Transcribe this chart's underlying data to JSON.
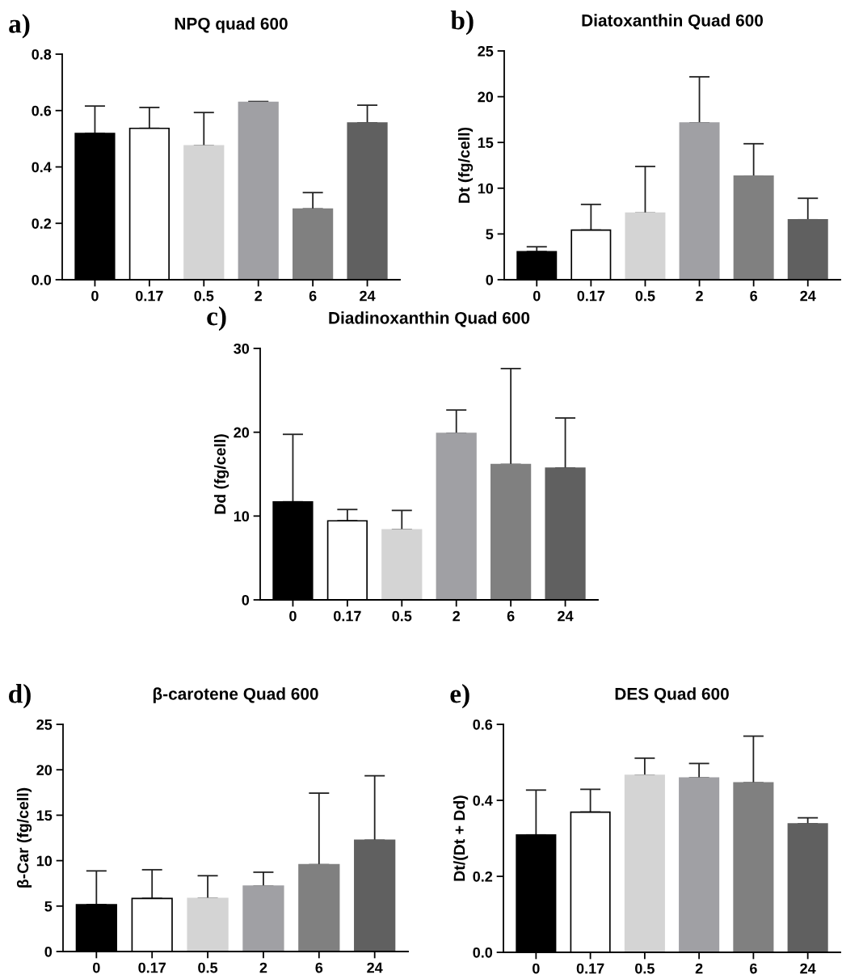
{
  "chart_data": [
    {
      "type": "bar",
      "title": "NPQ quad 600",
      "annotations": [
        "a)"
      ],
      "categories": [
        "0",
        "0.17",
        "0.5",
        "2",
        "6",
        "24"
      ],
      "values": [
        0.519,
        0.537,
        0.475,
        0.629,
        0.251,
        0.556
      ],
      "colors": [
        "#000000",
        "#ffffff",
        "#d4d4d4",
        "#a0a0a4",
        "#808080",
        "#606060"
      ],
      "errors": [
        [
          0.519,
          0.616
        ],
        [
          0.537,
          0.611
        ],
        [
          0.475,
          0.593
        ],
        [
          0.629,
          0.632
        ],
        [
          0.251,
          0.309
        ],
        [
          0.556,
          0.619
        ]
      ],
      "ylim": [
        0,
        0.8
      ],
      "yticks": [
        {
          "value": 0,
          "label": "0.0"
        },
        {
          "value": 0.2,
          "label": "0.2"
        },
        {
          "value": 0.4,
          "label": "0.4"
        },
        {
          "value": 0.6,
          "label": "0.6"
        },
        {
          "value": 0.8,
          "label": "0.8"
        }
      ],
      "grid": false,
      "legend": false
    },
    {
      "type": "bar",
      "title": "Diatoxanthin Quad 600",
      "ylabel": "Dt (fg/cell)",
      "annotations": [
        "b)"
      ],
      "categories": [
        "0",
        "0.17",
        "0.5",
        "2",
        "6",
        "24"
      ],
      "values": [
        3.07,
        5.42,
        7.28,
        17.13,
        11.32,
        6.55
      ],
      "colors": [
        "#000000",
        "#ffffff",
        "#d4d4d4",
        "#a0a0a4",
        "#808080",
        "#606060"
      ],
      "errors": [
        [
          3.07,
          3.6
        ],
        [
          5.42,
          8.23
        ],
        [
          7.28,
          12.38
        ],
        [
          17.13,
          22.17
        ],
        [
          11.32,
          14.86
        ],
        [
          6.55,
          8.9
        ]
      ],
      "ylim": [
        0,
        25
      ],
      "yticks": [
        0,
        5,
        10,
        15,
        20,
        25
      ],
      "grid": false,
      "legend": false
    },
    {
      "type": "bar",
      "title": "Diadinoxanthin Quad 600",
      "ylabel": "Dd (fg/cell)",
      "annotations": [
        "c)"
      ],
      "categories": [
        "0",
        "0.17",
        "0.5",
        "2",
        "6",
        "24"
      ],
      "values": [
        11.7,
        9.43,
        8.37,
        19.86,
        16.15,
        15.72
      ],
      "colors": [
        "#000000",
        "#ffffff",
        "#d4d4d4",
        "#a0a0a4",
        "#808080",
        "#606060"
      ],
      "errors": [
        [
          11.7,
          19.75
        ],
        [
          9.43,
          10.78
        ],
        [
          8.37,
          10.67
        ],
        [
          19.86,
          22.65
        ],
        [
          16.15,
          27.6
        ],
        [
          15.72,
          21.7
        ]
      ],
      "ylim": [
        0,
        30
      ],
      "yticks": [
        0,
        10,
        20,
        30
      ],
      "grid": false,
      "legend": false
    },
    {
      "type": "bar",
      "title": "β-carotene Quad 600",
      "ylabel": "β-Car (fg/cell)",
      "annotations": [
        "d)"
      ],
      "categories": [
        "0",
        "0.17",
        "0.5",
        "2",
        "6",
        "24"
      ],
      "values": [
        5.16,
        5.84,
        5.84,
        7.19,
        9.55,
        12.24
      ],
      "colors": [
        "#000000",
        "#ffffff",
        "#d4d4d4",
        "#a0a0a4",
        "#808080",
        "#606060"
      ],
      "errors": [
        [
          5.16,
          8.87
        ],
        [
          5.84,
          9.0
        ],
        [
          5.84,
          8.34
        ],
        [
          7.19,
          8.73
        ],
        [
          9.55,
          17.43
        ],
        [
          12.24,
          19.34
        ]
      ],
      "ylim": [
        0,
        25
      ],
      "yticks": [
        0,
        5,
        10,
        15,
        20,
        25
      ],
      "grid": false,
      "legend": false
    },
    {
      "type": "bar",
      "title": "DES Quad 600",
      "ylabel": "Dt/(Dt + Dd)",
      "annotations": [
        "e)"
      ],
      "categories": [
        "0",
        "0.17",
        "0.5",
        "2",
        "6",
        "24"
      ],
      "values": [
        0.309,
        0.369,
        0.466,
        0.459,
        0.446,
        0.338
      ],
      "colors": [
        "#000000",
        "#ffffff",
        "#d4d4d4",
        "#a0a0a4",
        "#808080",
        "#606060"
      ],
      "errors": [
        [
          0.309,
          0.427
        ],
        [
          0.369,
          0.429
        ],
        [
          0.466,
          0.511
        ],
        [
          0.459,
          0.497
        ],
        [
          0.446,
          0.569
        ],
        [
          0.338,
          0.354
        ]
      ],
      "ylim": [
        0,
        0.6
      ],
      "yticks": [
        {
          "value": 0,
          "label": "0.0"
        },
        {
          "value": 0.2,
          "label": "0.2"
        },
        {
          "value": 0.4,
          "label": "0.4"
        },
        {
          "value": 0.6,
          "label": "0.6"
        }
      ],
      "grid": false,
      "legend": false
    }
  ]
}
